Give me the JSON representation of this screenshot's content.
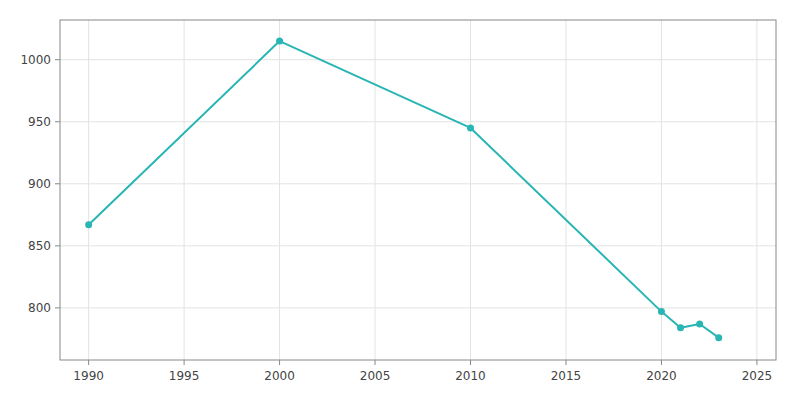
{
  "chart_data": {
    "type": "line",
    "x": [
      1990,
      2000,
      2010,
      2020,
      2021,
      2022,
      2023
    ],
    "values": [
      867,
      1015,
      945,
      797,
      784,
      787,
      776
    ],
    "color": "#2ab5b5",
    "marker": "circle",
    "xlim": [
      1988.5,
      2026
    ],
    "ylim": [
      758,
      1032
    ],
    "xticks": [
      1990,
      1995,
      2000,
      2005,
      2010,
      2015,
      2020,
      2025
    ],
    "yticks": [
      800,
      850,
      900,
      950,
      1000
    ],
    "grid": true
  }
}
